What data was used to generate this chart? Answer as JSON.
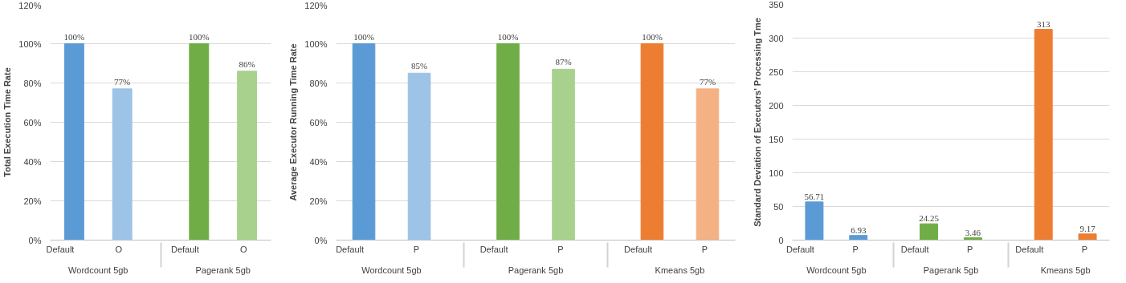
{
  "chart_data": [
    {
      "type": "bar",
      "ylabel": "Total Execution Time Rate",
      "categories": [
        "Default",
        "O",
        "Default",
        "O"
      ],
      "annotations": [
        "Wordcount 5gb",
        "Pagerank 5gb"
      ],
      "values": [
        100,
        77,
        100,
        86
      ],
      "colors": [
        "#5b9bd5",
        "#9dc3e6",
        "#70ad47",
        "#a9d18e"
      ],
      "value_labels": [
        "100%",
        "77%",
        "100%",
        "86%"
      ],
      "ylim": [
        0,
        120
      ],
      "yticks": [
        {
          "value": 0,
          "label": "0%"
        },
        {
          "value": 20,
          "label": "20%"
        },
        {
          "value": 40,
          "label": "40%"
        },
        {
          "value": 60,
          "label": "60%"
        },
        {
          "value": 80,
          "label": "80%"
        },
        {
          "value": 100,
          "label": "100%"
        },
        {
          "value": 120,
          "label": "120%"
        }
      ],
      "grid": "y"
    },
    {
      "type": "bar",
      "ylabel": "Average Executor Running Time Rate",
      "categories": [
        "Default",
        "P",
        "Default",
        "P",
        "Default",
        "P"
      ],
      "annotations": [
        "Wordcount 5gb",
        "Pagerank 5gb",
        "Kmeans 5gb"
      ],
      "values": [
        100,
        85,
        100,
        87,
        100,
        77
      ],
      "colors": [
        "#5b9bd5",
        "#9dc3e6",
        "#70ad47",
        "#a9d18e",
        "#ed7d31",
        "#f4b183"
      ],
      "value_labels": [
        "100%",
        "85%",
        "100%",
        "87%",
        "100%",
        "77%"
      ],
      "ylim": [
        0,
        120
      ],
      "yticks": [
        {
          "value": 0,
          "label": "0%"
        },
        {
          "value": 20,
          "label": "20%"
        },
        {
          "value": 40,
          "label": "40%"
        },
        {
          "value": 60,
          "label": "60%"
        },
        {
          "value": 80,
          "label": "80%"
        },
        {
          "value": 100,
          "label": "100%"
        },
        {
          "value": 120,
          "label": "120%"
        }
      ],
      "grid": "y"
    },
    {
      "type": "bar",
      "ylabel": "Standard Deviation of Executors' Processing Tme",
      "categories": [
        "Default",
        "P",
        "Default",
        "P",
        "Default",
        "P"
      ],
      "annotations": [
        "Wordcount 5gb",
        "Pagerank 5gb",
        "Kmeans 5gb"
      ],
      "values": [
        56.71,
        6.93,
        24.25,
        3.46,
        313,
        9.17
      ],
      "colors": [
        "#5b9bd5",
        "#5b9bd5",
        "#70ad47",
        "#70ad47",
        "#ed7d31",
        "#ed7d31"
      ],
      "data_labels": true,
      "ylim": [
        0,
        350
      ],
      "yticks": [
        0,
        50,
        100,
        150,
        200,
        250,
        300,
        350
      ],
      "grid": "y"
    }
  ]
}
